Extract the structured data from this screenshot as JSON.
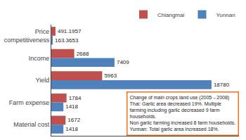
{
  "chart_data": {
    "type": "bar",
    "orientation": "horizontal",
    "categories": [
      "Price\ncompetitiveness",
      "Income",
      "Yield",
      "Farm expense",
      "Material cost"
    ],
    "series": [
      {
        "name": "Chiangmai",
        "color": "#c0504d",
        "values": [
          491.1957069,
          2688,
          5963,
          1784,
          1672
        ],
        "value_labels": [
          "491.1957",
          "2688",
          "5963",
          "1784",
          "1672"
        ]
      },
      {
        "name": "Yunnan",
        "color": "#4f81bd",
        "values": [
          163.3652822,
          7409,
          18780,
          1418,
          1418
        ],
        "value_labels": [
          "163.3653",
          "7409",
          "18780",
          "1418",
          "1418"
        ]
      }
    ],
    "xlim": [
      0,
      22000
    ],
    "data_labels": true,
    "tick_labels": "y",
    "grid": false,
    "legend": "upper right",
    "annotation": {
      "text": "Change of main crops land use (2005→2008)\nThai: Garlic area decreased 19%. Multiple\nfarming including garlic decreased 9 farm\nhouseholds.\nNon garlic farming increased 8 farm households.\nYunnan: Total garlic area increased 18%.",
      "color": "#f07020"
    }
  }
}
